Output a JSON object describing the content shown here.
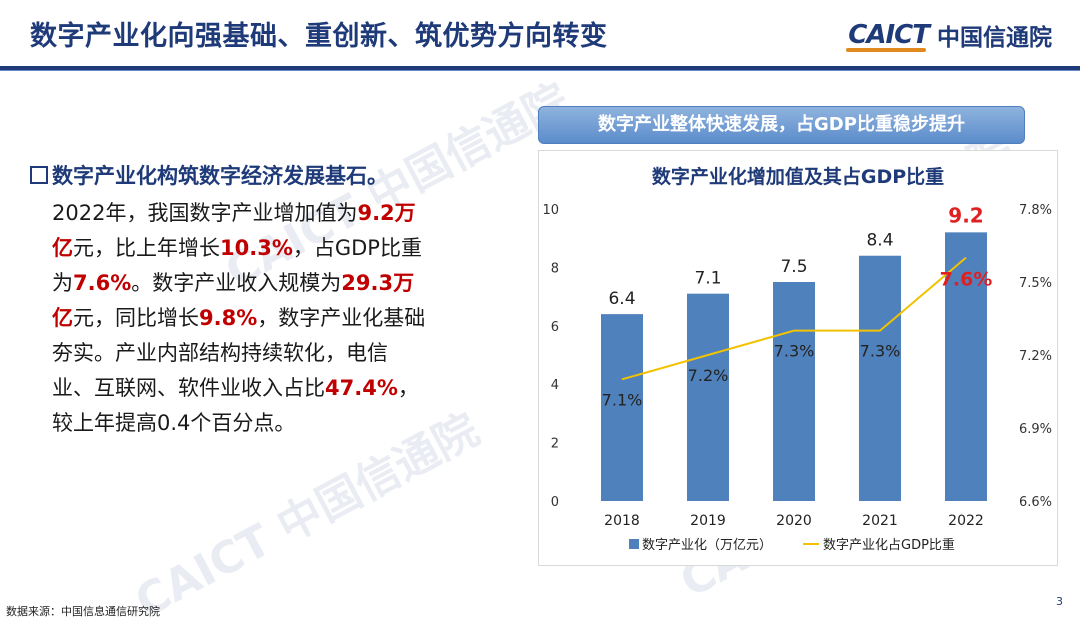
{
  "header": {
    "title": "数字产业化向强基础、重创新、筑优势方向转变",
    "logo_mark": "CAICT",
    "logo_name": "中国信通院"
  },
  "content": {
    "bullet_heading": "数字产业化构筑数字经济发展基石。",
    "paragraph": [
      {
        "t": "2022年，我国数字产业增加值为",
        "hl": false
      },
      {
        "t": "9.2万亿",
        "hl": true
      },
      {
        "t": "元，比上年增长",
        "hl": false
      },
      {
        "t": "10.3%",
        "hl": true
      },
      {
        "t": "，占GDP比重为",
        "hl": false
      },
      {
        "t": "7.6%",
        "hl": true
      },
      {
        "t": "。数字产业收入规模为",
        "hl": false
      },
      {
        "t": "29.3万亿",
        "hl": true
      },
      {
        "t": "元，同比增长",
        "hl": false
      },
      {
        "t": "9.8%",
        "hl": true
      },
      {
        "t": "，数字产业化基础夯实。产业内部结构持续软化，电信业、互联网、软件业收入占比",
        "hl": false
      },
      {
        "t": "47.4%",
        "hl": true
      },
      {
        "t": "，较上年提高0.4个百分点。",
        "hl": false
      }
    ]
  },
  "banner": "数字产业整体快速发展，占GDP比重稳步提升",
  "chart_data": {
    "type": "bar",
    "title": "数字产业化增加值及其占GDP比重",
    "categories": [
      "2018",
      "2019",
      "2020",
      "2021",
      "2022"
    ],
    "series": [
      {
        "name": "数字产业化（万亿元）",
        "type": "bar",
        "axis": "left",
        "values": [
          6.4,
          7.1,
          7.5,
          8.4,
          9.2
        ],
        "labels": [
          "6.4",
          "7.1",
          "7.5",
          "8.4",
          "9.2"
        ],
        "color": "#4f81bd"
      },
      {
        "name": "数字产业化占GDP比重",
        "type": "line",
        "axis": "right",
        "values": [
          7.1,
          7.2,
          7.3,
          7.3,
          7.6
        ],
        "labels": [
          "7.1%",
          "7.2%",
          "7.3%",
          "7.3%",
          "7.6%"
        ],
        "color": "#f2c200"
      }
    ],
    "ylim": [
      0,
      10
    ],
    "yticks": [
      "0",
      "2",
      "4",
      "6",
      "8",
      "10"
    ],
    "y2lim": [
      6.6,
      7.8
    ],
    "y2ticks": [
      "6.6%",
      "6.9%",
      "7.2%",
      "7.5%",
      "7.8%"
    ],
    "highlight_color": "#e02020",
    "grid": false,
    "legend": "bottom"
  },
  "source": "数据来源：中国信息通信研究院",
  "page_number": "3"
}
